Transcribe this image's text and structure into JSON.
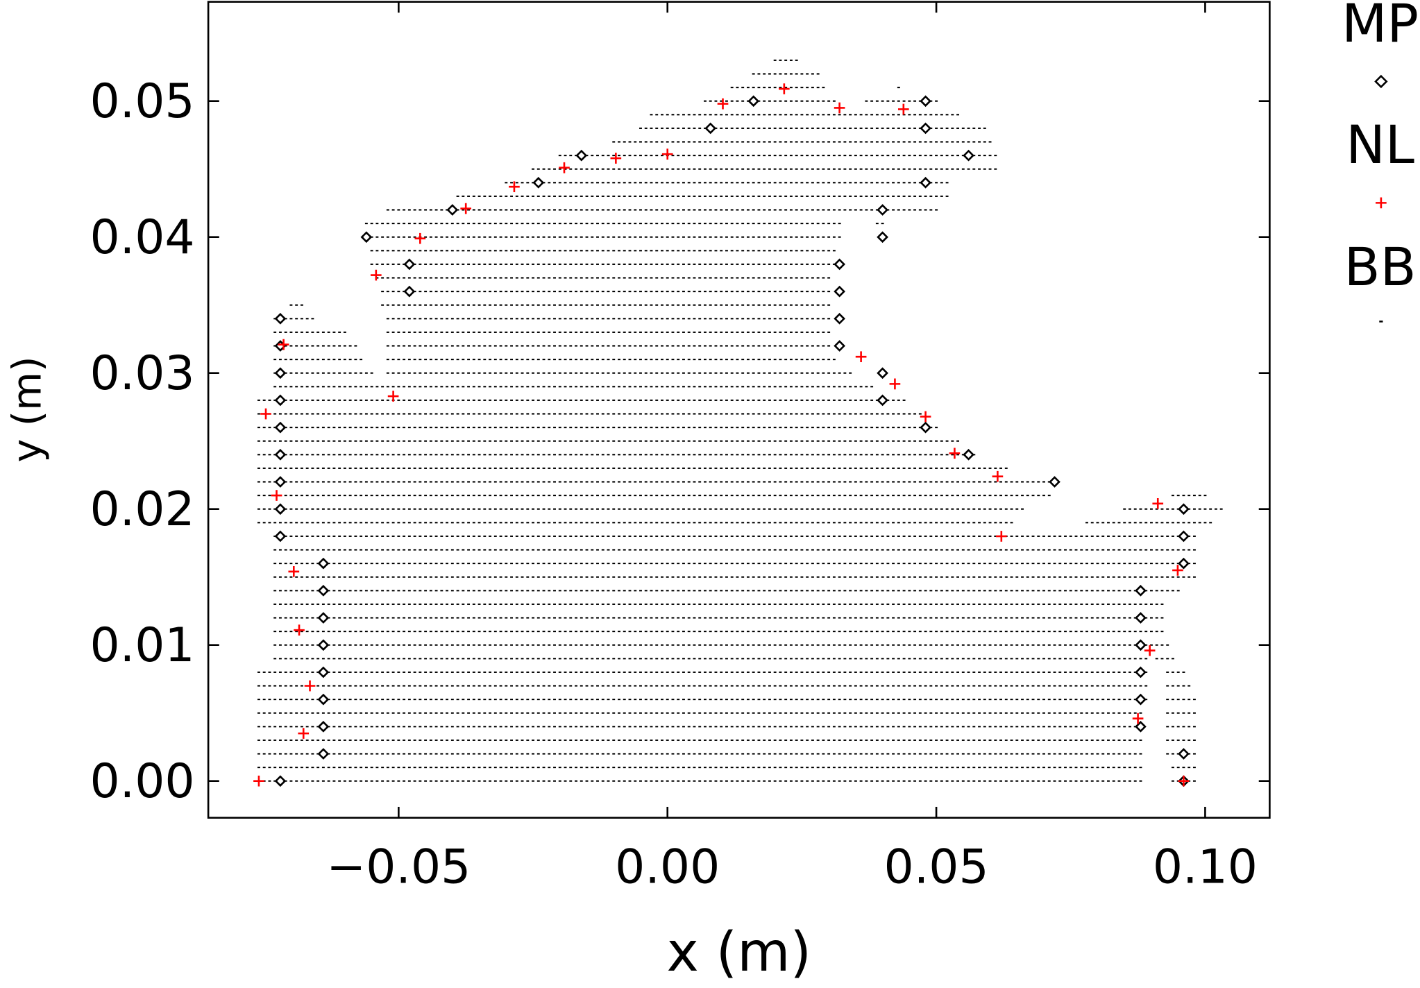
{
  "chart_data": {
    "type": "scatter",
    "title": "",
    "xlabel": "x (m)",
    "ylabel": "y (m)",
    "xlim": [
      -0.0854,
      0.112
    ],
    "ylim": [
      -0.0027,
      0.0573
    ],
    "grid": false,
    "legend_placement": "outside-right",
    "x_ticks": [
      {
        "value": -0.05,
        "label": "−0.05"
      },
      {
        "value": 0.0,
        "label": "0.00"
      },
      {
        "value": 0.05,
        "label": "0.05"
      },
      {
        "value": 0.1,
        "label": "0.10"
      }
    ],
    "y_ticks": [
      {
        "value": 0.0,
        "label": "0.00"
      },
      {
        "value": 0.01,
        "label": "0.01"
      },
      {
        "value": 0.02,
        "label": "0.02"
      },
      {
        "value": 0.03,
        "label": "0.03"
      },
      {
        "value": 0.04,
        "label": "0.04"
      },
      {
        "value": 0.05,
        "label": "0.05"
      }
    ],
    "series": [
      {
        "name": "MP",
        "marker": "diamond",
        "color": "#000000",
        "points": [
          [
            -0.072,
            0
          ],
          [
            -0.072,
            0.018
          ],
          [
            -0.072,
            0.02
          ],
          [
            -0.072,
            0.022
          ],
          [
            -0.072,
            0.024
          ],
          [
            -0.072,
            0.026
          ],
          [
            -0.072,
            0.028
          ],
          [
            -0.072,
            0.03
          ],
          [
            -0.072,
            0.032
          ],
          [
            -0.072,
            0.034
          ],
          [
            -0.064,
            0.016
          ],
          [
            -0.064,
            0.014
          ],
          [
            -0.064,
            0.012
          ],
          [
            -0.064,
            0.01
          ],
          [
            -0.064,
            0.008
          ],
          [
            -0.064,
            0.006
          ],
          [
            -0.064,
            0.004
          ],
          [
            -0.064,
            0.002
          ],
          [
            -0.056,
            0.04
          ],
          [
            -0.048,
            0.038
          ],
          [
            -0.048,
            0.036
          ],
          [
            -0.04,
            0.042
          ],
          [
            -0.024,
            0.044
          ],
          [
            -0.016,
            0.046
          ],
          [
            0.008,
            0.048
          ],
          [
            0.016,
            0.05
          ],
          [
            0.032,
            0.038
          ],
          [
            0.032,
            0.036
          ],
          [
            0.032,
            0.034
          ],
          [
            0.032,
            0.032
          ],
          [
            0.04,
            0.042
          ],
          [
            0.04,
            0.04
          ],
          [
            0.04,
            0.03
          ],
          [
            0.04,
            0.028
          ],
          [
            0.048,
            0.05
          ],
          [
            0.048,
            0.048
          ],
          [
            0.048,
            0.044
          ],
          [
            0.048,
            0.026
          ],
          [
            0.056,
            0.046
          ],
          [
            0.056,
            0.024
          ],
          [
            0.072,
            0.022
          ],
          [
            0.088,
            0.014
          ],
          [
            0.088,
            0.012
          ],
          [
            0.088,
            0.01
          ],
          [
            0.088,
            0.008
          ],
          [
            0.088,
            0.006
          ],
          [
            0.088,
            0.004
          ],
          [
            0.096,
            0.02
          ],
          [
            0.096,
            0.018
          ],
          [
            0.096,
            0.016
          ],
          [
            0.096,
            0.002
          ],
          [
            0.096,
            0
          ]
        ]
      },
      {
        "name": "NL",
        "marker": "plus",
        "color": "#ff0000",
        "points": [
          [
            -0.076,
            0
          ],
          [
            -0.0747,
            0.027
          ],
          [
            -0.0727,
            0.021
          ],
          [
            -0.0714,
            0.0321
          ],
          [
            -0.0695,
            0.0154
          ],
          [
            -0.0685,
            0.0111
          ],
          [
            -0.0665,
            0.007
          ],
          [
            -0.0677,
            0.0035
          ],
          [
            -0.0542,
            0.0372
          ],
          [
            -0.051,
            0.0283
          ],
          [
            -0.046,
            0.0399
          ],
          [
            -0.0375,
            0.0421
          ],
          [
            -0.0285,
            0.0437
          ],
          [
            -0.0192,
            0.0451
          ],
          [
            -0.0096,
            0.0458
          ],
          [
            0.0,
            0.0461
          ],
          [
            0.0103,
            0.0498
          ],
          [
            0.0217,
            0.0509
          ],
          [
            0.032,
            0.0495
          ],
          [
            0.036,
            0.0312
          ],
          [
            0.0423,
            0.0292
          ],
          [
            0.0439,
            0.0494
          ],
          [
            0.048,
            0.0268
          ],
          [
            0.0534,
            0.0241
          ],
          [
            0.0614,
            0.0224
          ],
          [
            0.0621,
            0.018
          ],
          [
            0.0875,
            0.0046
          ],
          [
            0.0897,
            0.0096
          ],
          [
            0.0912,
            0.0204
          ],
          [
            0.0949,
            0.0155
          ],
          [
            0.096,
            0
          ]
        ]
      },
      {
        "name": "BB",
        "marker": "dash",
        "color": "#000000",
        "grid_spacing": [
          0.001,
          0.001
        ],
        "region_polygon": [
          [
            -0.0766,
            0
          ],
          [
            -0.0766,
            0.0088
          ],
          [
            -0.0736,
            0.0088
          ],
          [
            -0.0736,
            0.0181
          ],
          [
            -0.0766,
            0.0188
          ],
          [
            -0.0766,
            0.0281
          ],
          [
            -0.0736,
            0.0281
          ],
          [
            -0.0736,
            0.0344
          ],
          [
            -0.0685,
            0.0354
          ],
          [
            -0.066,
            0.0341
          ],
          [
            -0.0593,
            0.0329
          ],
          [
            -0.0554,
            0.0304
          ],
          [
            -0.0525,
            0.0288
          ],
          [
            -0.0525,
            0.0334
          ],
          [
            -0.0571,
            0.0414
          ],
          [
            -0.05,
            0.0424
          ],
          [
            -0.0416,
            0.0427
          ],
          [
            -0.0298,
            0.0441
          ],
          [
            -0.0197,
            0.0461
          ],
          [
            -0.0062,
            0.0474
          ],
          [
            -0.0037,
            0.0491
          ],
          [
            0.0039,
            0.0494
          ],
          [
            0.0089,
            0.0504
          ],
          [
            0.0199,
            0.0531
          ],
          [
            0.0283,
            0.0529
          ],
          [
            0.0291,
            0.0514
          ],
          [
            0.0325,
            0.0494
          ],
          [
            0.0426,
            0.0511
          ],
          [
            0.0476,
            0.0507
          ],
          [
            0.0544,
            0.0491
          ],
          [
            0.0594,
            0.0481
          ],
          [
            0.062,
            0.0451
          ],
          [
            0.0527,
            0.0441
          ],
          [
            0.0519,
            0.0421
          ],
          [
            0.0409,
            0.0411
          ],
          [
            0.0409,
            0.0387
          ],
          [
            0.0375,
            0.0414
          ],
          [
            0.0333,
            0.0421
          ],
          [
            0.0308,
            0.0374
          ],
          [
            0.0305,
            0.0314
          ],
          [
            0.0359,
            0.0294
          ],
          [
            0.0443,
            0.0281
          ],
          [
            0.0527,
            0.0254
          ],
          [
            0.0594,
            0.0234
          ],
          [
            0.0721,
            0.0222
          ],
          [
            0.0746,
            0.0216
          ],
          [
            0.0678,
            0.0204
          ],
          [
            0.0645,
            0.0188
          ],
          [
            0.0779,
            0.019
          ],
          [
            0.0897,
            0.0208
          ],
          [
            0.0998,
            0.0214
          ],
          [
            0.1032,
            0.0201
          ],
          [
            0.1015,
            0.0188
          ],
          [
            0.0981,
            0.0188
          ],
          [
            0.0981,
            0.0148
          ],
          [
            0.0931,
            0.0134
          ],
          [
            0.0923,
            0.0108
          ],
          [
            0.0981,
            0.0068
          ],
          [
            0.0985,
            0
          ],
          [
            0.0931,
            0
          ],
          [
            0.0923,
            0.0081
          ],
          [
            0.0894,
            0.0095
          ],
          [
            0.0884,
            0
          ]
        ]
      }
    ]
  }
}
